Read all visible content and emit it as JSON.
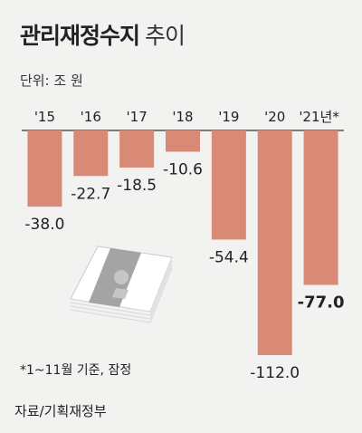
{
  "header": {
    "title": "관리재정수지",
    "subtitle": "추이",
    "unit": "단위: 조 원"
  },
  "footnote": "*1~11월 기준, 잠정",
  "source": "자료/기획재정부",
  "colors": {
    "bar": "#d98a76",
    "bar_highlight": "#d98a76",
    "axis": "#555555",
    "text": "#222222"
  },
  "icons": [
    "money-stack-icon"
  ],
  "chart_data": {
    "type": "bar",
    "categories": [
      "'15",
      "'16",
      "'17",
      "'18",
      "'19",
      "'20",
      "'21년*"
    ],
    "values": [
      -38.0,
      -22.7,
      -18.5,
      -10.6,
      -54.4,
      -112.0,
      -77.0
    ],
    "value_labels": [
      "-38.0",
      "-22.7",
      "-18.5",
      "-10.6",
      "-54.4",
      "-112.0",
      "-77.0"
    ],
    "highlight_index": 6,
    "ylim": [
      -112.0,
      0
    ],
    "title": "관리재정수지 추이",
    "xlabel": "",
    "ylabel": "",
    "unit": "조 원",
    "grid": false,
    "legend": "none"
  }
}
